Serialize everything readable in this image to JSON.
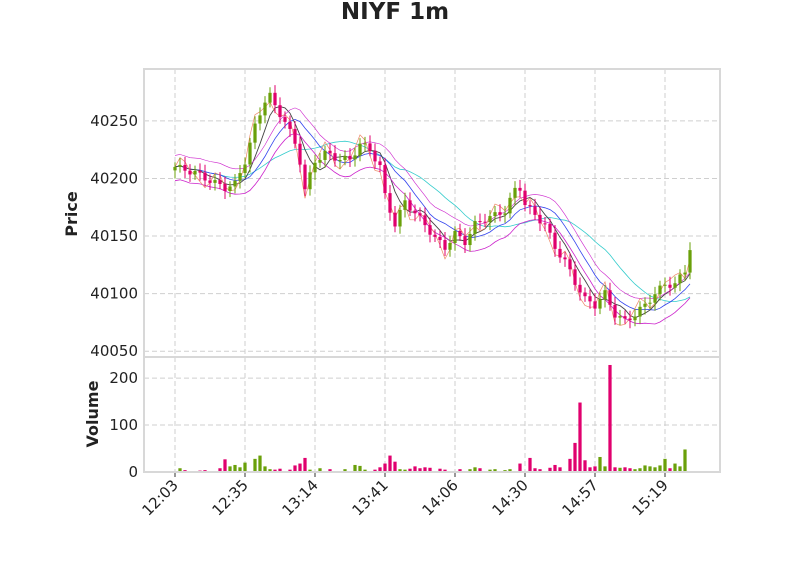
{
  "chart_data": {
    "type": "candlestick",
    "title": "NIYF 1m",
    "price_panel": {
      "ylabel": "Price",
      "yticks": [
        40050,
        40100,
        40150,
        40200,
        40250
      ],
      "ylim": [
        40045,
        40295
      ],
      "grid": true
    },
    "volume_panel": {
      "ylabel": "Volume",
      "yticks": [
        0,
        100,
        200
      ],
      "ylim": [
        0,
        245
      ],
      "grid": true
    },
    "x_tick_labels": [
      "12:03",
      "12:35",
      "13:14",
      "13:41",
      "14:06",
      "14:30",
      "14:57",
      "15:19"
    ],
    "x_tick_bars": [
      0,
      14,
      28,
      42,
      56,
      70,
      84,
      98
    ],
    "bar_count": 104,
    "colors": {
      "up": "#6aa00a",
      "down": "#e0006e"
    },
    "price_anchors": [
      [
        0,
        40210
      ],
      [
        4,
        40205
      ],
      [
        7,
        40198
      ],
      [
        10,
        40192
      ],
      [
        12,
        40195
      ],
      [
        14,
        40215
      ],
      [
        16,
        40245
      ],
      [
        18,
        40268
      ],
      [
        19,
        40272
      ],
      [
        20,
        40262
      ],
      [
        22,
        40250
      ],
      [
        24,
        40230
      ],
      [
        25,
        40215
      ],
      [
        26,
        40190
      ],
      [
        28,
        40215
      ],
      [
        30,
        40222
      ],
      [
        32,
        40218
      ],
      [
        35,
        40216
      ],
      [
        37,
        40230
      ],
      [
        39,
        40225
      ],
      [
        41,
        40210
      ],
      [
        42,
        40185
      ],
      [
        44,
        40160
      ],
      [
        46,
        40180
      ],
      [
        48,
        40170
      ],
      [
        50,
        40160
      ],
      [
        52,
        40148
      ],
      [
        54,
        40140
      ],
      [
        56,
        40152
      ],
      [
        58,
        40145
      ],
      [
        60,
        40160
      ],
      [
        62,
        40165
      ],
      [
        64,
        40168
      ],
      [
        66,
        40172
      ],
      [
        68,
        40190
      ],
      [
        69,
        40192
      ],
      [
        70,
        40178
      ],
      [
        72,
        40168
      ],
      [
        74,
        40160
      ],
      [
        76,
        40140
      ],
      [
        78,
        40128
      ],
      [
        80,
        40110
      ],
      [
        82,
        40095
      ],
      [
        84,
        40090
      ],
      [
        86,
        40100
      ],
      [
        88,
        40082
      ],
      [
        90,
        40076
      ],
      [
        92,
        40082
      ],
      [
        94,
        40090
      ],
      [
        96,
        40100
      ],
      [
        98,
        40108
      ],
      [
        100,
        40108
      ],
      [
        102,
        40120
      ],
      [
        103,
        40140
      ]
    ],
    "volume_spikes": [
      [
        1,
        8
      ],
      [
        2,
        4
      ],
      [
        5,
        3
      ],
      [
        6,
        4
      ],
      [
        9,
        8
      ],
      [
        10,
        27
      ],
      [
        11,
        12
      ],
      [
        12,
        15
      ],
      [
        13,
        10
      ],
      [
        14,
        20
      ],
      [
        16,
        28
      ],
      [
        17,
        35
      ],
      [
        18,
        12
      ],
      [
        19,
        6
      ],
      [
        20,
        5
      ],
      [
        21,
        7
      ],
      [
        23,
        5
      ],
      [
        24,
        14
      ],
      [
        25,
        18
      ],
      [
        26,
        30
      ],
      [
        27,
        5
      ],
      [
        29,
        8
      ],
      [
        31,
        6
      ],
      [
        34,
        6
      ],
      [
        36,
        15
      ],
      [
        37,
        13
      ],
      [
        38,
        5
      ],
      [
        40,
        5
      ],
      [
        41,
        10
      ],
      [
        42,
        18
      ],
      [
        43,
        35
      ],
      [
        44,
        22
      ],
      [
        45,
        6
      ],
      [
        46,
        5
      ],
      [
        47,
        7
      ],
      [
        48,
        12
      ],
      [
        49,
        8
      ],
      [
        50,
        10
      ],
      [
        51,
        9
      ],
      [
        53,
        7
      ],
      [
        54,
        5
      ],
      [
        57,
        6
      ],
      [
        59,
        6
      ],
      [
        60,
        10
      ],
      [
        61,
        8
      ],
      [
        63,
        5
      ],
      [
        64,
        6
      ],
      [
        66,
        4
      ],
      [
        67,
        6
      ],
      [
        69,
        18
      ],
      [
        71,
        30
      ],
      [
        72,
        8
      ],
      [
        73,
        6
      ],
      [
        75,
        9
      ],
      [
        76,
        15
      ],
      [
        77,
        10
      ],
      [
        79,
        28
      ],
      [
        80,
        62
      ],
      [
        81,
        148
      ],
      [
        82,
        25
      ],
      [
        83,
        10
      ],
      [
        84,
        12
      ],
      [
        85,
        32
      ],
      [
        86,
        12
      ],
      [
        87,
        228
      ],
      [
        88,
        10
      ],
      [
        89,
        9
      ],
      [
        90,
        10
      ],
      [
        91,
        8
      ],
      [
        92,
        6
      ],
      [
        93,
        8
      ],
      [
        94,
        14
      ],
      [
        95,
        12
      ],
      [
        96,
        10
      ],
      [
        97,
        14
      ],
      [
        98,
        28
      ],
      [
        99,
        8
      ],
      [
        100,
        18
      ],
      [
        101,
        12
      ],
      [
        102,
        48
      ]
    ]
  }
}
